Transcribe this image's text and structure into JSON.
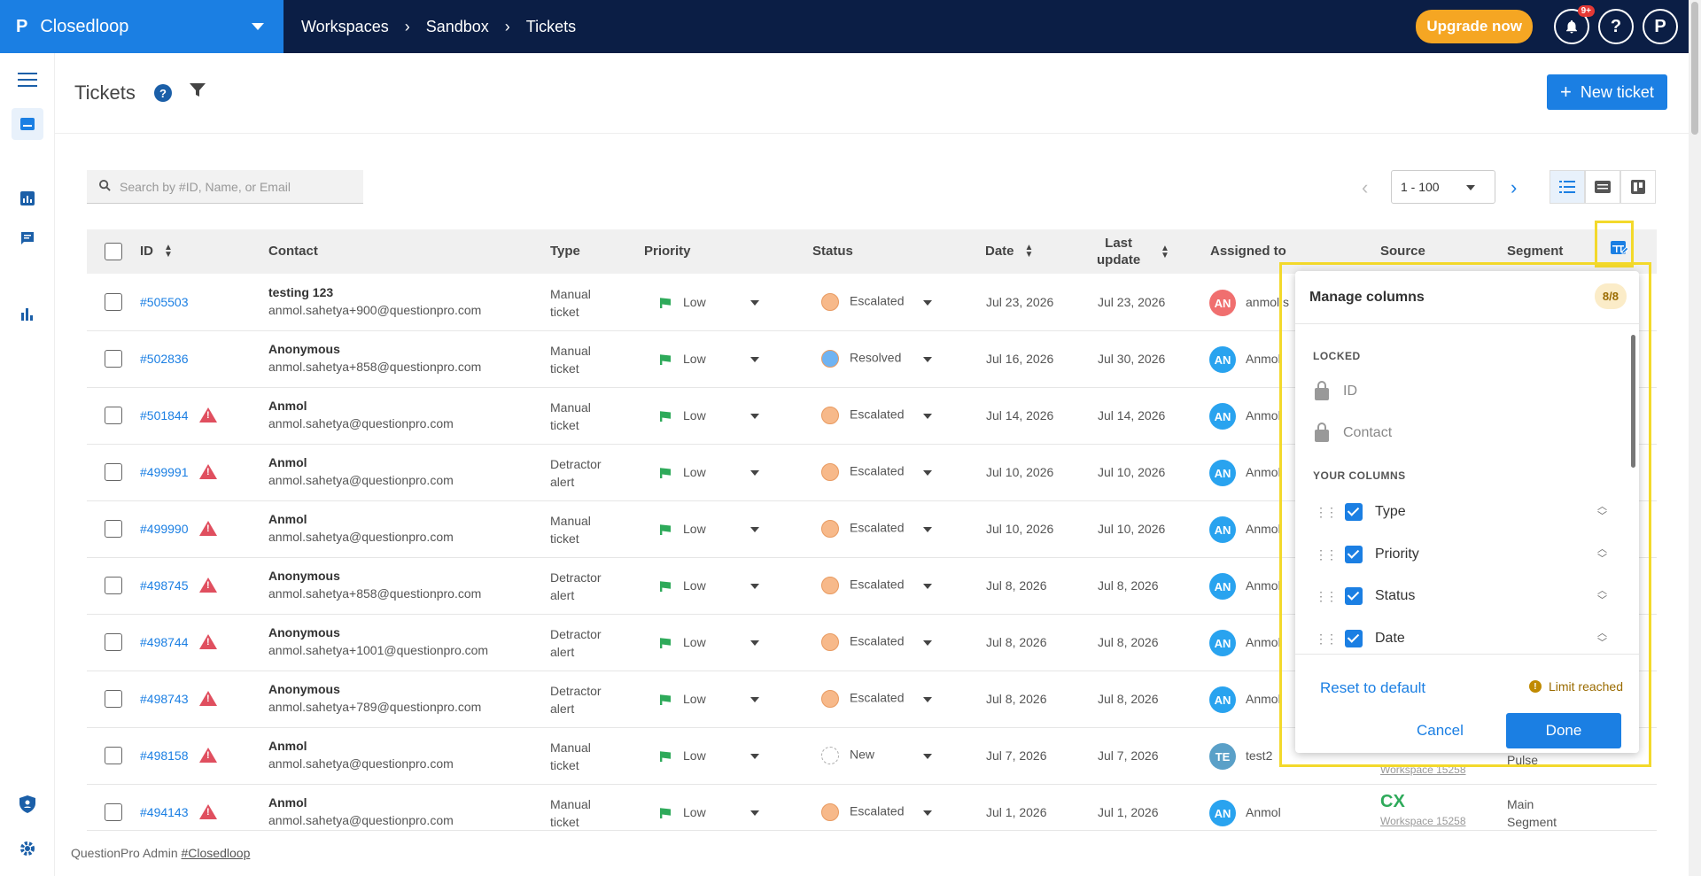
{
  "app": {
    "logo": "P",
    "name": "Closedloop"
  },
  "breadcrumbs": [
    "Workspaces",
    "Sandbox",
    "Tickets"
  ],
  "topbar": {
    "upgrade_label": "Upgrade now",
    "notif_badge": "9+",
    "help_label": "?",
    "profile_label": "P"
  },
  "page": {
    "title": "Tickets",
    "help_label": "?",
    "new_ticket_label": "New ticket"
  },
  "search": {
    "placeholder": "Search by #ID, Name, or Email"
  },
  "pager": {
    "range": "1 - 100"
  },
  "table": {
    "headers": {
      "id": "ID",
      "contact": "Contact",
      "type": "Type",
      "priority": "Priority",
      "status": "Status",
      "date": "Date",
      "last_update_1": "Last",
      "last_update_2": "update",
      "assigned": "Assigned to",
      "source": "Source",
      "segment": "Segment"
    },
    "rows": [
      {
        "id": "#505503",
        "alert": false,
        "name": "testing 123",
        "email": "anmol.sahetya+900@questionpro.com",
        "type1": "Manual",
        "type2": "ticket",
        "priority": "Low",
        "status": "Escalated",
        "status_color": "#f7b98a",
        "date": "Jul 23, 2026",
        "updated": "Jul 23, 2026",
        "avatar": "AN",
        "avatar_color": "#f06f6f",
        "assignee": "anmol.s"
      },
      {
        "id": "#502836",
        "alert": false,
        "name": "Anonymous",
        "email": "anmol.sahetya+858@questionpro.com",
        "type1": "Manual",
        "type2": "ticket",
        "priority": "Low",
        "status": "Resolved",
        "status_color": "#6fb3f2",
        "date": "Jul 16, 2026",
        "updated": "Jul 30, 2026",
        "avatar": "AN",
        "avatar_color": "#29a3ef",
        "assignee": "Anmol"
      },
      {
        "id": "#501844",
        "alert": true,
        "name": "Anmol",
        "email": "anmol.sahetya@questionpro.com",
        "type1": "Manual",
        "type2": "ticket",
        "priority": "Low",
        "status": "Escalated",
        "status_color": "#f7b98a",
        "date": "Jul 14, 2026",
        "updated": "Jul 14, 2026",
        "avatar": "AN",
        "avatar_color": "#29a3ef",
        "assignee": "Anmol"
      },
      {
        "id": "#499991",
        "alert": true,
        "name": "Anmol",
        "email": "anmol.sahetya@questionpro.com",
        "type1": "Detractor",
        "type2": "alert",
        "priority": "Low",
        "status": "Escalated",
        "status_color": "#f7b98a",
        "date": "Jul 10, 2026",
        "updated": "Jul 10, 2026",
        "avatar": "AN",
        "avatar_color": "#29a3ef",
        "assignee": "Anmol"
      },
      {
        "id": "#499990",
        "alert": true,
        "name": "Anmol",
        "email": "anmol.sahetya@questionpro.com",
        "type1": "Manual",
        "type2": "ticket",
        "priority": "Low",
        "status": "Escalated",
        "status_color": "#f7b98a",
        "date": "Jul 10, 2026",
        "updated": "Jul 10, 2026",
        "avatar": "AN",
        "avatar_color": "#29a3ef",
        "assignee": "Anmol"
      },
      {
        "id": "#498745",
        "alert": true,
        "name": "Anonymous",
        "email": "anmol.sahetya+858@questionpro.com",
        "type1": "Detractor",
        "type2": "alert",
        "priority": "Low",
        "status": "Escalated",
        "status_color": "#f7b98a",
        "date": "Jul 8, 2026",
        "updated": "Jul 8, 2026",
        "avatar": "AN",
        "avatar_color": "#29a3ef",
        "assignee": "Anmol"
      },
      {
        "id": "#498744",
        "alert": true,
        "name": "Anonymous",
        "email": "anmol.sahetya+1001@questionpro.com",
        "type1": "Detractor",
        "type2": "alert",
        "priority": "Low",
        "status": "Escalated",
        "status_color": "#f7b98a",
        "date": "Jul 8, 2026",
        "updated": "Jul 8, 2026",
        "avatar": "AN",
        "avatar_color": "#29a3ef",
        "assignee": "Anmol"
      },
      {
        "id": "#498743",
        "alert": true,
        "name": "Anonymous",
        "email": "anmol.sahetya+789@questionpro.com",
        "type1": "Detractor",
        "type2": "alert",
        "priority": "Low",
        "status": "Escalated",
        "status_color": "#f7b98a",
        "date": "Jul 8, 2026",
        "updated": "Jul 8, 2026",
        "avatar": "AN",
        "avatar_color": "#29a3ef",
        "assignee": "Anmol"
      },
      {
        "id": "#498158",
        "alert": true,
        "name": "Anmol",
        "email": "anmol.sahetya@questionpro.com",
        "type1": "Manual",
        "type2": "ticket",
        "priority": "Low",
        "status": "New",
        "status_color": "",
        "date": "Jul 7, 2026",
        "updated": "Jul 7, 2026",
        "avatar": "TE",
        "avatar_color": "#5aa0c8",
        "assignee": "test2",
        "source_sub": "Workspace 15258",
        "segment1": "Pulse"
      },
      {
        "id": "#494143",
        "alert": true,
        "name": "Anmol",
        "email": "anmol.sahetya@questionpro.com",
        "type1": "Manual",
        "type2": "ticket",
        "priority": "Low",
        "status": "Escalated",
        "status_color": "#f7b98a",
        "date": "Jul 1, 2026",
        "updated": "Jul 1, 2026",
        "avatar": "AN",
        "avatar_color": "#29a3ef",
        "assignee": "Anmol",
        "source": "CX",
        "source_sub": "Workspace 15258",
        "segment1": "Main",
        "segment2": "Segment"
      }
    ]
  },
  "manage_columns": {
    "title": "Manage columns",
    "count": "8/8",
    "locked_label": "LOCKED",
    "locked": [
      "ID",
      "Contact"
    ],
    "your_label": "YOUR COLUMNS",
    "columns": [
      "Type",
      "Priority",
      "Status",
      "Date"
    ],
    "reset_label": "Reset to default",
    "limit_label": "Limit reached",
    "cancel_label": "Cancel",
    "done_label": "Done"
  },
  "footer": {
    "prefix": "QuestionPro Admin",
    "link": "#Closedloop"
  },
  "colors": {
    "brand": "#1b7fe3",
    "topbar": "#0b1e45",
    "upgrade": "#f5a623",
    "highlight": "#f3d92b",
    "flag": "#2eaa5a",
    "alert": "#e04f5f"
  }
}
